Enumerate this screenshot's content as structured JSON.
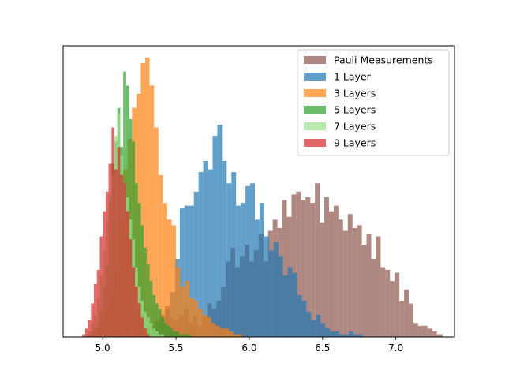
{
  "chart_data": {
    "type": "histogram",
    "title": "",
    "xlabel": "",
    "ylabel": "",
    "xlim": [
      4.73,
      7.4
    ],
    "ylim": [
      0,
      1.0
    ],
    "x_ticks": [
      5.0,
      5.5,
      6.0,
      6.5,
      7.0
    ],
    "x_tick_labels": [
      "5.0",
      "5.5",
      "6.0",
      "6.5",
      "7.0"
    ],
    "y_ticks_visible": false,
    "grid": false,
    "legend_position": "top-right",
    "bar_alpha": 0.7,
    "draw_order": [
      "Pauli Measurements",
      "1 Layer",
      "3 Layers",
      "5 Layers",
      "7 Layers",
      "9 Layers"
    ],
    "series": [
      {
        "name": "Pauli Measurements",
        "color": "#8c564b",
        "bin_edges": [
          5.2,
          5.232,
          5.264,
          5.296,
          5.328,
          5.36,
          5.392,
          5.424,
          5.456,
          5.488,
          5.52,
          5.552,
          5.584,
          5.616,
          5.648,
          5.68,
          5.712,
          5.744,
          5.776,
          5.808,
          5.84,
          5.872,
          5.904,
          5.936,
          5.968,
          6.0,
          6.032,
          6.064,
          6.096,
          6.128,
          6.16,
          6.192,
          6.224,
          6.256,
          6.288,
          6.32,
          6.352,
          6.384,
          6.416,
          6.448,
          6.48,
          6.512,
          6.544,
          6.576,
          6.608,
          6.64,
          6.672,
          6.704,
          6.736,
          6.768,
          6.8,
          6.832,
          6.864,
          6.896,
          6.928,
          6.96,
          6.992,
          7.024,
          7.056,
          7.088,
          7.12,
          7.152,
          7.184,
          7.216,
          7.248,
          7.28,
          7.32
        ],
        "counts": [
          0.01,
          0.02,
          0.02,
          0.03,
          0.04,
          0.06,
          0.08,
          0.11,
          0.07,
          0.06,
          0.08,
          0.1,
          0.05,
          0.08,
          0.04,
          0.07,
          0.12,
          0.1,
          0.13,
          0.18,
          0.27,
          0.32,
          0.25,
          0.29,
          0.33,
          0.27,
          0.31,
          0.37,
          0.27,
          0.38,
          0.42,
          0.39,
          0.49,
          0.43,
          0.51,
          0.52,
          0.49,
          0.5,
          0.48,
          0.55,
          0.41,
          0.5,
          0.45,
          0.47,
          0.42,
          0.38,
          0.44,
          0.39,
          0.4,
          0.33,
          0.37,
          0.28,
          0.36,
          0.25,
          0.24,
          0.2,
          0.23,
          0.13,
          0.17,
          0.12,
          0.05,
          0.04,
          0.04,
          0.03,
          0.02,
          0.01
        ]
      },
      {
        "name": "1 Layer",
        "color": "#1f77b4",
        "bin_edges": [
          5.27,
          5.302,
          5.334,
          5.366,
          5.398,
          5.43,
          5.462,
          5.494,
          5.526,
          5.558,
          5.59,
          5.622,
          5.654,
          5.686,
          5.718,
          5.75,
          5.782,
          5.814,
          5.846,
          5.878,
          5.91,
          5.942,
          5.974,
          6.006,
          6.038,
          6.07,
          6.102,
          6.134,
          6.166,
          6.198,
          6.23,
          6.262,
          6.294,
          6.326,
          6.358,
          6.39,
          6.422,
          6.454,
          6.486,
          6.518,
          6.55,
          6.582,
          6.614,
          6.646,
          6.678,
          6.71,
          6.742,
          6.774
        ],
        "counts": [
          0.01,
          0.02,
          0.03,
          0.05,
          0.07,
          0.1,
          0.16,
          0.28,
          0.46,
          0.47,
          0.47,
          0.52,
          0.59,
          0.63,
          0.6,
          0.72,
          0.76,
          0.63,
          0.55,
          0.59,
          0.47,
          0.48,
          0.54,
          0.55,
          0.42,
          0.48,
          0.36,
          0.31,
          0.34,
          0.29,
          0.22,
          0.25,
          0.23,
          0.15,
          0.13,
          0.09,
          0.06,
          0.08,
          0.05,
          0.03,
          0.02,
          0.02,
          0.01,
          0.01,
          0.02,
          0.01,
          0.01
        ]
      },
      {
        "name": "3 Layers",
        "color": "#ff7f0e",
        "bin_edges": [
          4.93,
          4.96,
          4.99,
          5.02,
          5.05,
          5.08,
          5.11,
          5.14,
          5.17,
          5.2,
          5.23,
          5.26,
          5.29,
          5.32,
          5.35,
          5.38,
          5.41,
          5.44,
          5.47,
          5.5,
          5.53,
          5.56,
          5.59,
          5.62,
          5.65,
          5.68,
          5.71,
          5.74,
          5.77,
          5.8,
          5.83,
          5.86,
          5.89,
          5.92,
          5.95
        ],
        "counts": [
          0.01,
          0.03,
          0.05,
          0.09,
          0.16,
          0.25,
          0.42,
          0.6,
          0.71,
          0.82,
          0.87,
          0.98,
          1.0,
          0.9,
          0.75,
          0.58,
          0.48,
          0.42,
          0.4,
          0.25,
          0.18,
          0.2,
          0.14,
          0.13,
          0.1,
          0.08,
          0.07,
          0.05,
          0.04,
          0.03,
          0.03,
          0.02,
          0.01,
          0.01
        ]
      },
      {
        "name": "5 Layers",
        "color": "#2ca02c",
        "bin_edges": [
          4.9,
          4.92,
          4.94,
          4.96,
          4.98,
          5.0,
          5.02,
          5.04,
          5.06,
          5.08,
          5.1,
          5.12,
          5.14,
          5.16,
          5.18,
          5.2,
          5.22,
          5.24,
          5.26,
          5.28,
          5.3,
          5.32,
          5.34,
          5.36,
          5.38,
          5.4,
          5.42,
          5.44,
          5.46,
          5.48,
          5.5,
          5.52,
          5.54,
          5.56,
          5.58,
          5.6
        ],
        "counts": [
          0.01,
          0.02,
          0.03,
          0.05,
          0.09,
          0.18,
          0.25,
          0.48,
          0.62,
          0.7,
          0.82,
          0.68,
          0.95,
          0.9,
          0.78,
          0.7,
          0.55,
          0.48,
          0.4,
          0.32,
          0.26,
          0.2,
          0.15,
          0.12,
          0.1,
          0.07,
          0.05,
          0.04,
          0.03,
          0.02,
          0.02,
          0.01,
          0.01,
          0.01,
          0.01
        ]
      },
      {
        "name": "7 Layers",
        "color": "#98df8a",
        "bin_edges": [
          4.88,
          4.9,
          4.92,
          4.94,
          4.96,
          4.98,
          5.0,
          5.02,
          5.04,
          5.06,
          5.08,
          5.1,
          5.12,
          5.14,
          5.16,
          5.18,
          5.2,
          5.22,
          5.24,
          5.26,
          5.28,
          5.3,
          5.32,
          5.34,
          5.36,
          5.38,
          5.4,
          5.42
        ],
        "counts": [
          0.01,
          0.02,
          0.05,
          0.08,
          0.14,
          0.22,
          0.31,
          0.42,
          0.51,
          0.58,
          0.72,
          0.8,
          0.65,
          0.55,
          0.5,
          0.42,
          0.35,
          0.25,
          0.18,
          0.13,
          0.09,
          0.07,
          0.05,
          0.03,
          0.02,
          0.01,
          0.01
        ]
      },
      {
        "name": "9 Layers",
        "color": "#d62728",
        "bin_edges": [
          4.86,
          4.88,
          4.9,
          4.92,
          4.94,
          4.96,
          4.98,
          5.0,
          5.02,
          5.04,
          5.06,
          5.08,
          5.1,
          5.12,
          5.14,
          5.16,
          5.18,
          5.2,
          5.22,
          5.24,
          5.26,
          5.28,
          5.3,
          5.32
        ],
        "counts": [
          0.01,
          0.03,
          0.06,
          0.12,
          0.19,
          0.24,
          0.36,
          0.45,
          0.52,
          0.62,
          0.75,
          0.6,
          0.68,
          0.58,
          0.55,
          0.45,
          0.35,
          0.25,
          0.18,
          0.12,
          0.07,
          0.03,
          0.01
        ]
      }
    ]
  }
}
